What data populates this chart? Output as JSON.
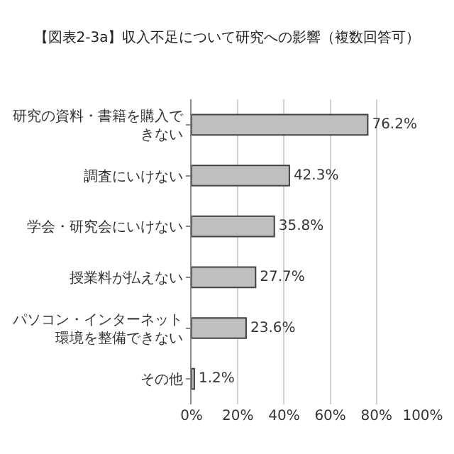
{
  "chart_data": {
    "type": "bar",
    "orientation": "horizontal",
    "title": "【図表2-3a】収入不足について研究への影響（複数回答可）",
    "categories": [
      "研究の資料・書籍を購入できない",
      "調査にいけない",
      "学会・研究会にいけない",
      "授業料が払えない",
      "パソコン・インターネット環境を整備できない",
      "その他"
    ],
    "values": [
      76.2,
      42.3,
      35.8,
      27.7,
      23.6,
      1.2
    ],
    "value_labels": [
      "76.2%",
      "42.3%",
      "35.8%",
      "27.7%",
      "23.6%",
      "1.2%"
    ],
    "color": "#bfbfbf",
    "xlim": [
      0,
      100
    ],
    "xticks": [
      {
        "value": 0,
        "label": "0%"
      },
      {
        "value": 20,
        "label": "20%"
      },
      {
        "value": 40,
        "label": "40%"
      },
      {
        "value": 60,
        "label": "60%"
      },
      {
        "value": 80,
        "label": "80%"
      },
      {
        "value": 100,
        "label": "100%"
      }
    ],
    "grid": "x",
    "legend": false
  }
}
